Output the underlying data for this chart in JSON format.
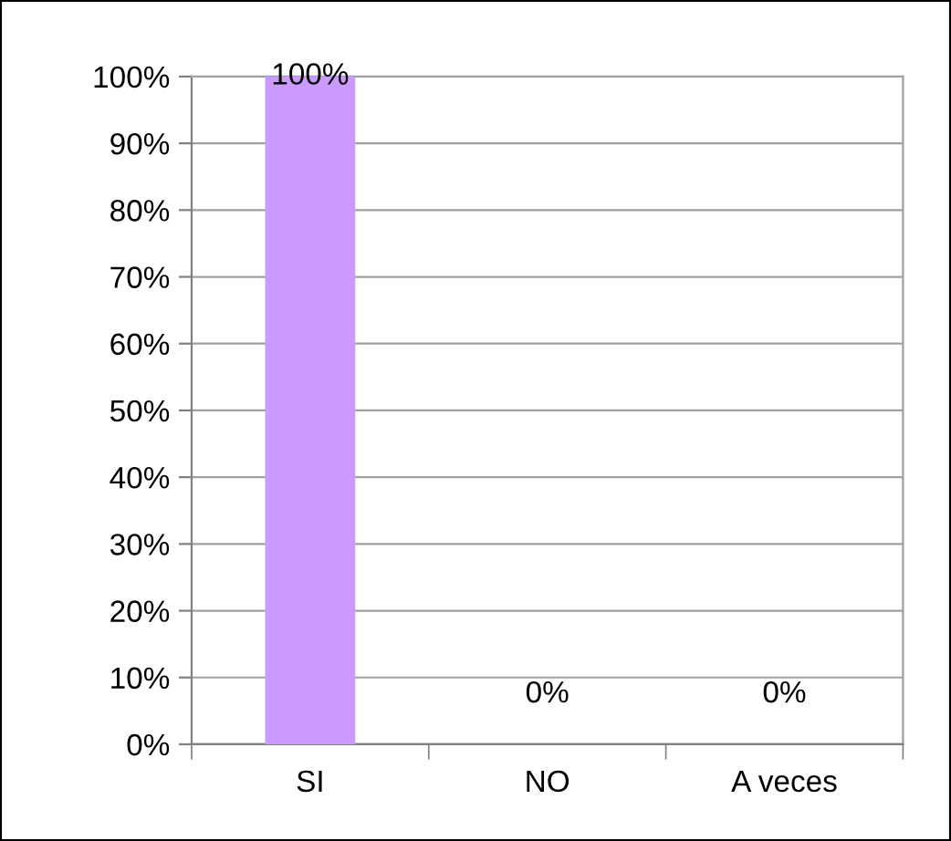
{
  "chart_data": {
    "type": "bar",
    "categories": [
      "SI",
      "NO",
      "A veces"
    ],
    "values": [
      100,
      0,
      0
    ],
    "color": "#cc99ff",
    "value_labels": [
      "100%",
      "0%",
      "0%"
    ],
    "ylim": [
      0,
      100
    ],
    "yticks": [
      {
        "value": 0,
        "label": "0%"
      },
      {
        "value": 10,
        "label": "10%"
      },
      {
        "value": 20,
        "label": "20%"
      },
      {
        "value": 30,
        "label": "30%"
      },
      {
        "value": 40,
        "label": "40%"
      },
      {
        "value": 50,
        "label": "50%"
      },
      {
        "value": 60,
        "label": "60%"
      },
      {
        "value": 70,
        "label": "70%"
      },
      {
        "value": 80,
        "label": "80%"
      },
      {
        "value": 90,
        "label": "90%"
      },
      {
        "value": 100,
        "label": "100%"
      }
    ],
    "grid": "y",
    "legend": false
  }
}
